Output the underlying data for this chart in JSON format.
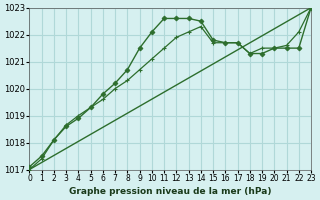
{
  "title": "Graphe pression niveau de la mer (hPa)",
  "x_labels": [
    "0",
    "1",
    "2",
    "3",
    "4",
    "5",
    "6",
    "7",
    "8",
    "9",
    "10",
    "11",
    "12",
    "13",
    "14",
    "15",
    "16",
    "17",
    "18",
    "19",
    "20",
    "21",
    "22",
    "23"
  ],
  "xlim": [
    0,
    23
  ],
  "ylim": [
    1017,
    1023
  ],
  "yticks": [
    1017,
    1018,
    1019,
    1020,
    1021,
    1022,
    1023
  ],
  "background_color": "#d6f0f0",
  "grid_color": "#b0d8d8",
  "line_color": "#2d6e2d",
  "series1_x": [
    0,
    1,
    2,
    3,
    4,
    5,
    6,
    7,
    8,
    9,
    10,
    11,
    12,
    13,
    14,
    15,
    16,
    17,
    18,
    19,
    20,
    21,
    22,
    23
  ],
  "series1_y": [
    1017.1,
    1017.5,
    1018.1,
    1018.6,
    1018.9,
    1019.3,
    1019.8,
    1020.2,
    1020.7,
    1021.5,
    1022.1,
    1022.6,
    1022.6,
    1022.6,
    1022.5,
    1021.8,
    1021.7,
    1021.7,
    1021.3,
    1021.3,
    1021.5,
    1021.5,
    1021.5,
    1023.0
  ],
  "series2_x": [
    0,
    1,
    2,
    3,
    4,
    5,
    6,
    7,
    8,
    9,
    10,
    11,
    12,
    13,
    14,
    15,
    16,
    17,
    18,
    19,
    20,
    21,
    22,
    23
  ],
  "series2_y": [
    1017.0,
    1017.4,
    1018.1,
    1018.65,
    1019.0,
    1019.3,
    1019.6,
    1020.0,
    1020.3,
    1020.7,
    1021.1,
    1021.5,
    1021.9,
    1022.1,
    1022.3,
    1021.7,
    1021.7,
    1021.7,
    1021.3,
    1021.5,
    1021.5,
    1021.6,
    1022.1,
    1023.0
  ],
  "series3_x": [
    0,
    23
  ],
  "series3_y": [
    1017.0,
    1023.0
  ]
}
